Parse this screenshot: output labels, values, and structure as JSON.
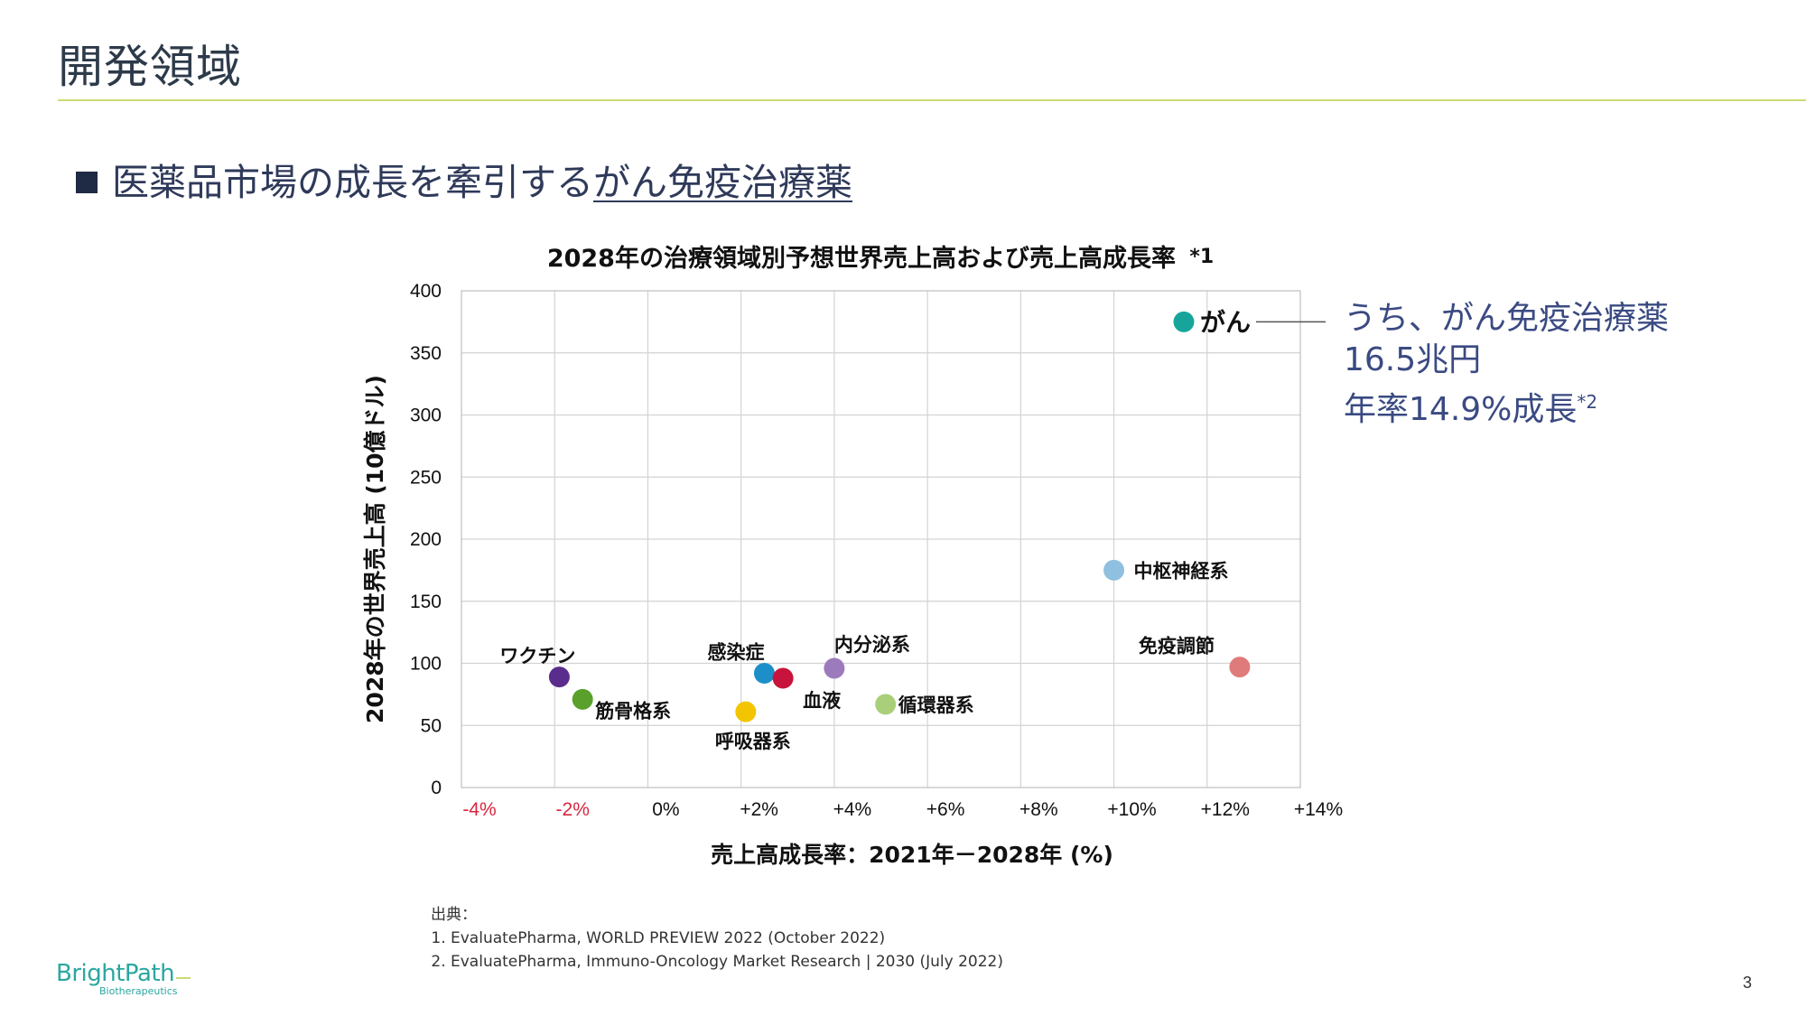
{
  "page": {
    "title": "開発領域",
    "subtitle_prefix": "医薬品市場の成長を牽引する",
    "subtitle_emphasis": "がん免疫治療薬",
    "page_number": "3"
  },
  "callout": {
    "line1": "うち、がん免疫治療薬",
    "line2_value": "16.5",
    "line2_unit": "兆円",
    "line3_prefix": "年率",
    "line3_value": "14.9%",
    "line3_suffix": "成長",
    "line3_note": "*2",
    "color": "#3a4a82"
  },
  "sources": {
    "heading": "出典：",
    "items": [
      "EvaluatePharma, WORLD PREVIEW 2022 (October 2022)",
      "EvaluatePharma, Immuno-Oncology Market Research | 2030 (July 2022)"
    ]
  },
  "logo": {
    "name": "BrightPath",
    "tagline": "Biotherapeutics",
    "color": "#2aa7a0"
  },
  "chart_data": {
    "type": "scatter",
    "title": "2028年の治療領域別予想世界売上高および売上高成長率",
    "title_note": "*1",
    "xlabel": "売上高成長率：2021年－2028年 (%)",
    "ylabel": "2028年の世界売上高 (10億ドル)",
    "xlim": [
      -4,
      14
    ],
    "ylim": [
      0,
      400
    ],
    "x_ticks": [
      "-4%",
      "-2%",
      "0%",
      "+2%",
      "+4%",
      "+6%",
      "+8%",
      "+10%",
      "+12%",
      "+14%"
    ],
    "y_ticks": [
      "0",
      "50",
      "100",
      "150",
      "200",
      "250",
      "300",
      "350",
      "400"
    ],
    "negative_tick_color": "#d8263f",
    "grid": true,
    "points": [
      {
        "name": "がん",
        "x": 11.5,
        "y": 375,
        "color": "#17a59b"
      },
      {
        "name": "中枢神経系",
        "x": 10.0,
        "y": 175,
        "color": "#8fc0df"
      },
      {
        "name": "免疫調節",
        "x": 12.7,
        "y": 97,
        "color": "#e07b7b"
      },
      {
        "name": "ワクチン",
        "x": -1.9,
        "y": 89,
        "color": "#5a2d8c"
      },
      {
        "name": "筋骨格系",
        "x": -1.4,
        "y": 71,
        "color": "#5aa02c"
      },
      {
        "name": "感染症",
        "x": 2.5,
        "y": 92,
        "color": "#1d8fc8"
      },
      {
        "name": "血液",
        "x": 2.9,
        "y": 88,
        "color": "#c8143c"
      },
      {
        "name": "呼吸器系",
        "x": 2.1,
        "y": 61,
        "color": "#f2c500"
      },
      {
        "name": "内分泌系",
        "x": 4.0,
        "y": 96,
        "color": "#9c7bbd"
      },
      {
        "name": "循環器系",
        "x": 5.1,
        "y": 67,
        "color": "#a9cf7a"
      }
    ]
  }
}
